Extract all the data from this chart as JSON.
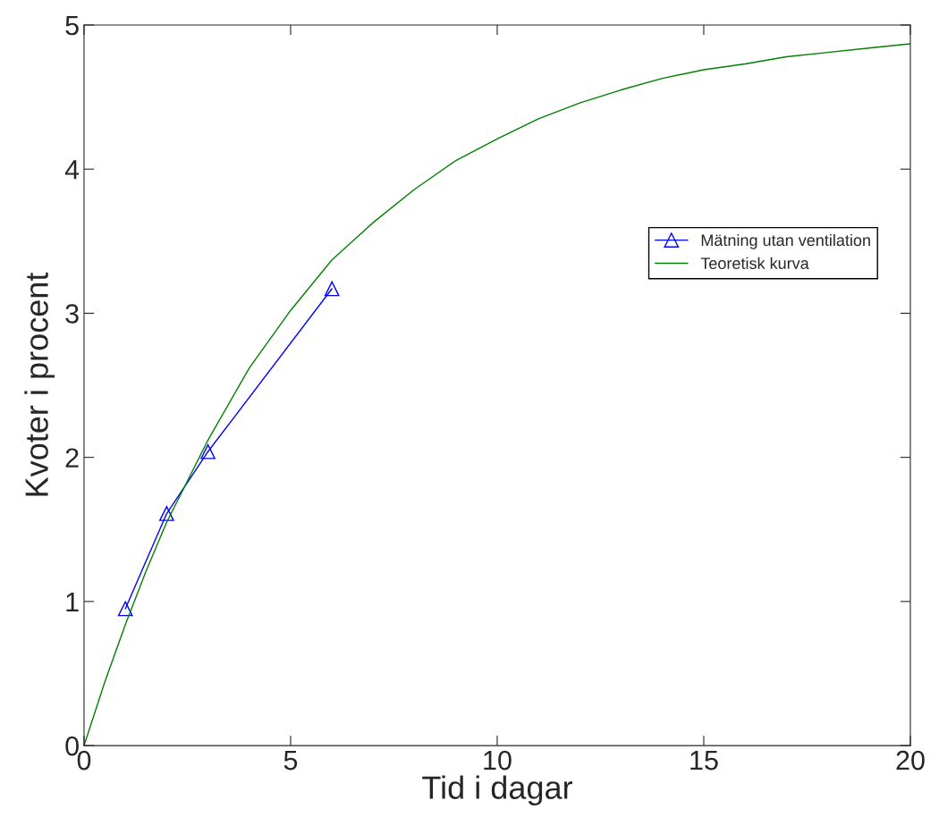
{
  "chart_data": {
    "type": "line",
    "xlabel": "Tid i dagar",
    "ylabel": "Kvoter i procent",
    "xlim": [
      0,
      20
    ],
    "ylim": [
      0,
      5
    ],
    "xticks": [
      0,
      5,
      10,
      15,
      20
    ],
    "yticks": [
      0,
      1,
      2,
      3,
      4,
      5
    ],
    "grid": false,
    "legend": "right",
    "series": [
      {
        "name": "Mätning utan ventilation",
        "color": "#0000ff",
        "marker": "triangle",
        "x": [
          1,
          2,
          3,
          6
        ],
        "values": [
          0.95,
          1.61,
          2.04,
          3.17
        ]
      },
      {
        "name": "Teoretisk kurva",
        "color": "#008000",
        "marker": "none",
        "x": [
          0,
          0.5,
          1,
          1.5,
          2,
          3,
          4,
          5,
          6,
          7,
          8,
          9,
          10,
          11,
          12,
          13,
          14,
          15,
          16,
          17,
          18,
          19,
          20
        ],
        "values": [
          0,
          0.44,
          0.84,
          1.21,
          1.55,
          2.12,
          2.62,
          3.02,
          3.37,
          3.63,
          3.86,
          4.06,
          4.21,
          4.35,
          4.46,
          4.55,
          4.63,
          4.69,
          4.73,
          4.78,
          4.81,
          4.84,
          4.87
        ]
      }
    ]
  }
}
